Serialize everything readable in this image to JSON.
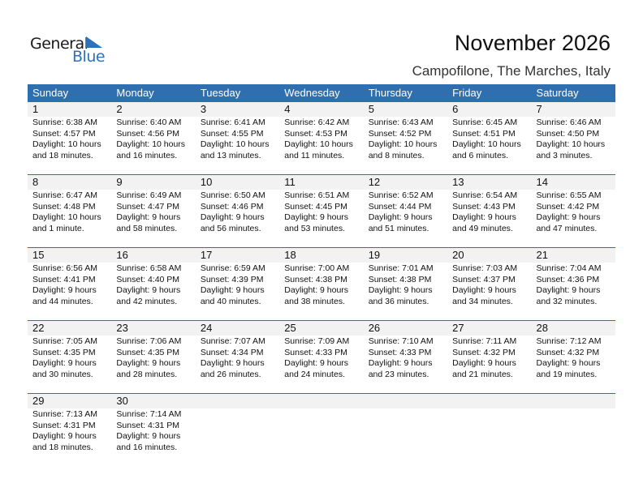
{
  "logo": {
    "line1": "General",
    "line2": "Blue"
  },
  "title": "November 2026",
  "subtitle": "Campofilone, The Marches, Italy",
  "colors": {
    "header": "#2f6fb0",
    "day_row": "#f2f2f2"
  },
  "weekdays": [
    "Sunday",
    "Monday",
    "Tuesday",
    "Wednesday",
    "Thursday",
    "Friday",
    "Saturday"
  ],
  "weeks": [
    [
      {
        "day": "1",
        "sunrise": "Sunrise: 6:38 AM",
        "sunset": "Sunset: 4:57 PM",
        "daylight": "Daylight: 10 hours",
        "minutes": "and 18 minutes."
      },
      {
        "day": "2",
        "sunrise": "Sunrise: 6:40 AM",
        "sunset": "Sunset: 4:56 PM",
        "daylight": "Daylight: 10 hours",
        "minutes": "and 16 minutes."
      },
      {
        "day": "3",
        "sunrise": "Sunrise: 6:41 AM",
        "sunset": "Sunset: 4:55 PM",
        "daylight": "Daylight: 10 hours",
        "minutes": "and 13 minutes."
      },
      {
        "day": "4",
        "sunrise": "Sunrise: 6:42 AM",
        "sunset": "Sunset: 4:53 PM",
        "daylight": "Daylight: 10 hours",
        "minutes": "and 11 minutes."
      },
      {
        "day": "5",
        "sunrise": "Sunrise: 6:43 AM",
        "sunset": "Sunset: 4:52 PM",
        "daylight": "Daylight: 10 hours",
        "minutes": "and 8 minutes."
      },
      {
        "day": "6",
        "sunrise": "Sunrise: 6:45 AM",
        "sunset": "Sunset: 4:51 PM",
        "daylight": "Daylight: 10 hours",
        "minutes": "and 6 minutes."
      },
      {
        "day": "7",
        "sunrise": "Sunrise: 6:46 AM",
        "sunset": "Sunset: 4:50 PM",
        "daylight": "Daylight: 10 hours",
        "minutes": "and 3 minutes."
      }
    ],
    [
      {
        "day": "8",
        "sunrise": "Sunrise: 6:47 AM",
        "sunset": "Sunset: 4:48 PM",
        "daylight": "Daylight: 10 hours",
        "minutes": "and 1 minute."
      },
      {
        "day": "9",
        "sunrise": "Sunrise: 6:49 AM",
        "sunset": "Sunset: 4:47 PM",
        "daylight": "Daylight: 9 hours",
        "minutes": "and 58 minutes."
      },
      {
        "day": "10",
        "sunrise": "Sunrise: 6:50 AM",
        "sunset": "Sunset: 4:46 PM",
        "daylight": "Daylight: 9 hours",
        "minutes": "and 56 minutes."
      },
      {
        "day": "11",
        "sunrise": "Sunrise: 6:51 AM",
        "sunset": "Sunset: 4:45 PM",
        "daylight": "Daylight: 9 hours",
        "minutes": "and 53 minutes."
      },
      {
        "day": "12",
        "sunrise": "Sunrise: 6:52 AM",
        "sunset": "Sunset: 4:44 PM",
        "daylight": "Daylight: 9 hours",
        "minutes": "and 51 minutes."
      },
      {
        "day": "13",
        "sunrise": "Sunrise: 6:54 AM",
        "sunset": "Sunset: 4:43 PM",
        "daylight": "Daylight: 9 hours",
        "minutes": "and 49 minutes."
      },
      {
        "day": "14",
        "sunrise": "Sunrise: 6:55 AM",
        "sunset": "Sunset: 4:42 PM",
        "daylight": "Daylight: 9 hours",
        "minutes": "and 47 minutes."
      }
    ],
    [
      {
        "day": "15",
        "sunrise": "Sunrise: 6:56 AM",
        "sunset": "Sunset: 4:41 PM",
        "daylight": "Daylight: 9 hours",
        "minutes": "and 44 minutes."
      },
      {
        "day": "16",
        "sunrise": "Sunrise: 6:58 AM",
        "sunset": "Sunset: 4:40 PM",
        "daylight": "Daylight: 9 hours",
        "minutes": "and 42 minutes."
      },
      {
        "day": "17",
        "sunrise": "Sunrise: 6:59 AM",
        "sunset": "Sunset: 4:39 PM",
        "daylight": "Daylight: 9 hours",
        "minutes": "and 40 minutes."
      },
      {
        "day": "18",
        "sunrise": "Sunrise: 7:00 AM",
        "sunset": "Sunset: 4:38 PM",
        "daylight": "Daylight: 9 hours",
        "minutes": "and 38 minutes."
      },
      {
        "day": "19",
        "sunrise": "Sunrise: 7:01 AM",
        "sunset": "Sunset: 4:38 PM",
        "daylight": "Daylight: 9 hours",
        "minutes": "and 36 minutes."
      },
      {
        "day": "20",
        "sunrise": "Sunrise: 7:03 AM",
        "sunset": "Sunset: 4:37 PM",
        "daylight": "Daylight: 9 hours",
        "minutes": "and 34 minutes."
      },
      {
        "day": "21",
        "sunrise": "Sunrise: 7:04 AM",
        "sunset": "Sunset: 4:36 PM",
        "daylight": "Daylight: 9 hours",
        "minutes": "and 32 minutes."
      }
    ],
    [
      {
        "day": "22",
        "sunrise": "Sunrise: 7:05 AM",
        "sunset": "Sunset: 4:35 PM",
        "daylight": "Daylight: 9 hours",
        "minutes": "and 30 minutes."
      },
      {
        "day": "23",
        "sunrise": "Sunrise: 7:06 AM",
        "sunset": "Sunset: 4:35 PM",
        "daylight": "Daylight: 9 hours",
        "minutes": "and 28 minutes."
      },
      {
        "day": "24",
        "sunrise": "Sunrise: 7:07 AM",
        "sunset": "Sunset: 4:34 PM",
        "daylight": "Daylight: 9 hours",
        "minutes": "and 26 minutes."
      },
      {
        "day": "25",
        "sunrise": "Sunrise: 7:09 AM",
        "sunset": "Sunset: 4:33 PM",
        "daylight": "Daylight: 9 hours",
        "minutes": "and 24 minutes."
      },
      {
        "day": "26",
        "sunrise": "Sunrise: 7:10 AM",
        "sunset": "Sunset: 4:33 PM",
        "daylight": "Daylight: 9 hours",
        "minutes": "and 23 minutes."
      },
      {
        "day": "27",
        "sunrise": "Sunrise: 7:11 AM",
        "sunset": "Sunset: 4:32 PM",
        "daylight": "Daylight: 9 hours",
        "minutes": "and 21 minutes."
      },
      {
        "day": "28",
        "sunrise": "Sunrise: 7:12 AM",
        "sunset": "Sunset: 4:32 PM",
        "daylight": "Daylight: 9 hours",
        "minutes": "and 19 minutes."
      }
    ],
    [
      {
        "day": "29",
        "sunrise": "Sunrise: 7:13 AM",
        "sunset": "Sunset: 4:31 PM",
        "daylight": "Daylight: 9 hours",
        "minutes": "and 18 minutes."
      },
      {
        "day": "30",
        "sunrise": "Sunrise: 7:14 AM",
        "sunset": "Sunset: 4:31 PM",
        "daylight": "Daylight: 9 hours",
        "minutes": "and 16 minutes."
      }
    ]
  ]
}
